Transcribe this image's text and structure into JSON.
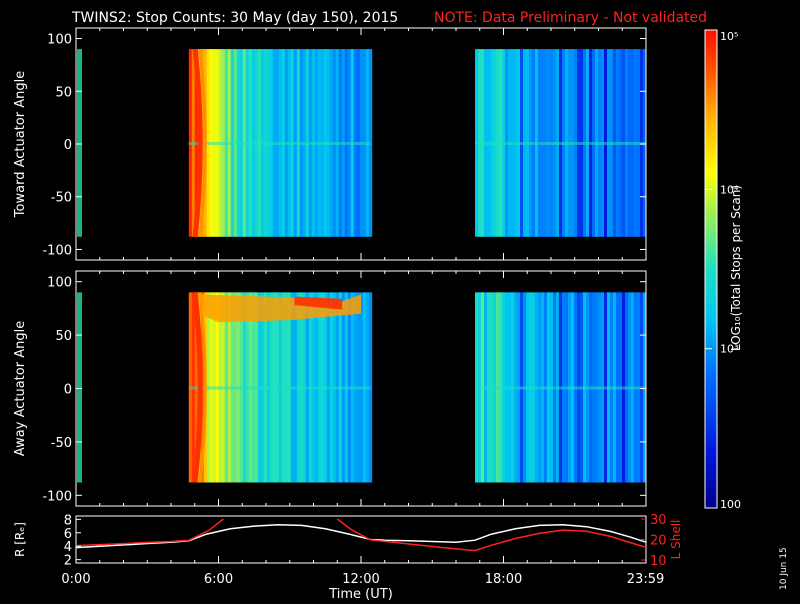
{
  "title": {
    "main": "TWINS2: Stop Counts: 30 May (day 150), 2015",
    "note": "NOTE: Data Preliminary - Not validated",
    "main_color": "#ffffff",
    "note_color": "#ff2020"
  },
  "colorbar": {
    "label": "LOG₁₀(Total Stops per Scan)",
    "range": [
      100,
      100000
    ],
    "ticks": [
      {
        "value": 100000,
        "label": "10⁵"
      },
      {
        "value": 10000,
        "label": "10⁴"
      },
      {
        "value": 1000,
        "label": "10³"
      },
      {
        "value": 100,
        "label": "100"
      }
    ]
  },
  "date_stamp": "10 Jun 15",
  "chart_data": [
    {
      "type": "heatmap",
      "name": "toward",
      "ylabel": "Toward Actuator Angle",
      "ylim": [
        -110,
        110
      ],
      "yticks": [
        100,
        50,
        0,
        -50,
        -100
      ],
      "xlim": [
        0,
        24
      ],
      "data_time_ranges": [
        [
          4.75,
          12.4
        ],
        [
          16.8,
          24.0
        ]
      ],
      "angle_range": [
        -88,
        90
      ]
    },
    {
      "type": "heatmap",
      "name": "away",
      "ylabel": "Away Actuator Angle",
      "ylim": [
        -110,
        110
      ],
      "yticks": [
        100,
        50,
        0,
        -50,
        -100
      ],
      "xlim": [
        0,
        24
      ],
      "data_time_ranges": [
        [
          4.75,
          12.4
        ],
        [
          16.8,
          24.0
        ]
      ],
      "angle_range": [
        -88,
        90
      ]
    },
    {
      "type": "line",
      "name": "orbit",
      "xlabel": "Time (UT)",
      "ylabel": "R [Rₑ]",
      "ylabel_right": "L Shell",
      "xlim": [
        0,
        24
      ],
      "ylim": [
        1.5,
        8.5
      ],
      "ylim_right": [
        10,
        30
      ],
      "xticks": [
        {
          "value": 0,
          "label": "0:00"
        },
        {
          "value": 6,
          "label": "6:00"
        },
        {
          "value": 12,
          "label": "12:00"
        },
        {
          "value": 18,
          "label": "18:00"
        },
        {
          "value": 23.98,
          "label": "23:59"
        }
      ],
      "yticks": [
        2,
        4,
        6,
        8
      ],
      "yticks_right": [
        10,
        20,
        30
      ],
      "series": [
        {
          "axis": "left",
          "color": "#ffffff",
          "x": [
            0,
            1,
            2,
            3,
            4,
            4.75,
            5.5,
            6.5,
            7.5,
            8.5,
            9.5,
            10.5,
            11.5,
            12.4,
            13,
            14,
            15,
            16,
            16.8,
            17.5,
            18.5,
            19.5,
            20.5,
            21.5,
            22.5,
            23.3,
            24
          ],
          "y": [
            3.8,
            4.0,
            4.2,
            4.4,
            4.6,
            4.8,
            5.8,
            6.6,
            7.0,
            7.2,
            7.1,
            6.6,
            5.8,
            5.0,
            4.9,
            4.8,
            4.7,
            4.6,
            4.9,
            5.8,
            6.6,
            7.1,
            7.2,
            6.9,
            6.2,
            5.4,
            4.6
          ]
        },
        {
          "axis": "right",
          "color": "#ff2020",
          "x": [
            0,
            1,
            2,
            3,
            4,
            4.75,
            5.6,
            6.2
          ],
          "y": [
            17.0,
            17.5,
            18.0,
            18.6,
            19.0,
            19.6,
            24.5,
            30.0
          ]
        },
        {
          "axis": "right",
          "color": "#ff2020",
          "x": [
            11.0,
            11.6,
            12.4,
            13.5,
            14.5,
            15.5,
            16.8,
            17.5,
            18.5,
            19.5,
            20.5,
            21.5,
            22.5,
            23.3,
            24
          ],
          "y": [
            30.0,
            24.8,
            19.8,
            18.5,
            17.2,
            16.0,
            14.6,
            17.2,
            20.5,
            23.0,
            24.6,
            24.0,
            21.5,
            18.6,
            16.2
          ]
        }
      ]
    }
  ]
}
